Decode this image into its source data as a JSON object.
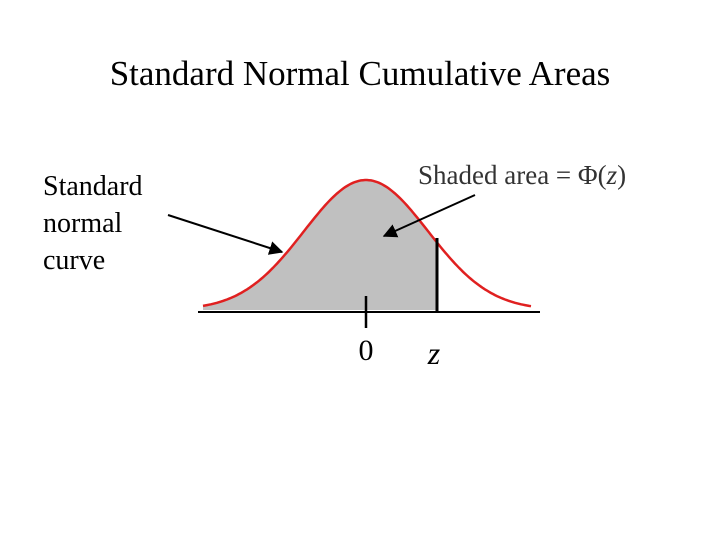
{
  "title": "Standard Normal Cumulative Areas",
  "curve_label": {
    "lines": [
      "Standard",
      "normal",
      "curve"
    ]
  },
  "area_label": {
    "prefix": "Shaded area = ",
    "phi": "Φ",
    "open": "(",
    "var": "z",
    "close": ")"
  },
  "axis": {
    "tick_zero": "0",
    "tick_z": "z"
  },
  "colors": {
    "curve": "#e02020",
    "shade": "#c0c0c0",
    "axis": "#000000"
  }
}
